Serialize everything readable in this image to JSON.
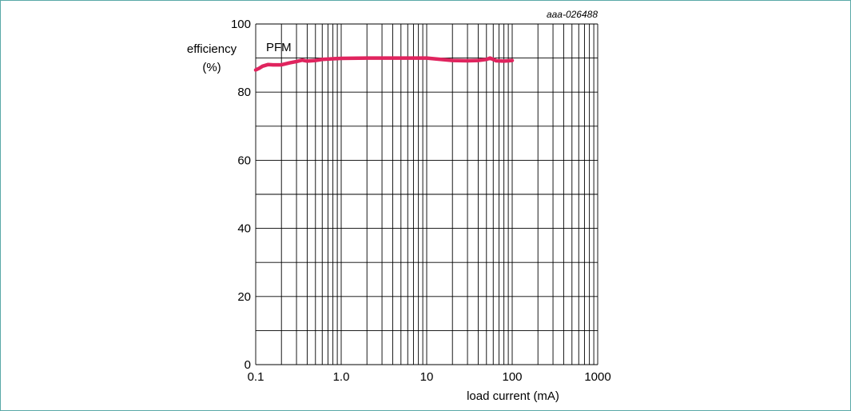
{
  "figure_code": "aaa-026488",
  "chart_data": {
    "type": "line",
    "title": "",
    "xlabel": "load current (mA)",
    "ylabel_line1": "efficiency",
    "ylabel_line2": "(%)",
    "x_scale": "log",
    "xlim": [
      0.1,
      1000
    ],
    "ylim": [
      0,
      100
    ],
    "x_tick_labels": [
      "0.1",
      "1.0",
      "10",
      "100",
      "1000"
    ],
    "x_tick_values": [
      0.1,
      1,
      10,
      100,
      1000
    ],
    "y_tick_labels": [
      "0",
      "20",
      "40",
      "60",
      "80",
      "100"
    ],
    "y_tick_values": [
      0,
      20,
      40,
      60,
      80,
      100
    ],
    "grid": true,
    "annotations": [
      "PFM"
    ],
    "series": [
      {
        "color": "#e0245e",
        "x": [
          0.1,
          0.11,
          0.12,
          0.14,
          0.16,
          0.2,
          0.25,
          0.3,
          0.35,
          0.4,
          0.5,
          0.6,
          0.8,
          1.0,
          2.0,
          3.0,
          5.0,
          10,
          20,
          30,
          40,
          50,
          55,
          65,
          80,
          100
        ],
        "y": [
          86.5,
          87.0,
          87.6,
          88.1,
          88.0,
          88.0,
          88.6,
          89.0,
          89.4,
          89.1,
          89.3,
          89.6,
          89.8,
          89.9,
          90.0,
          90.0,
          90.0,
          90.0,
          89.3,
          89.2,
          89.3,
          89.6,
          90.0,
          89.2,
          89.1,
          89.3
        ]
      }
    ]
  }
}
